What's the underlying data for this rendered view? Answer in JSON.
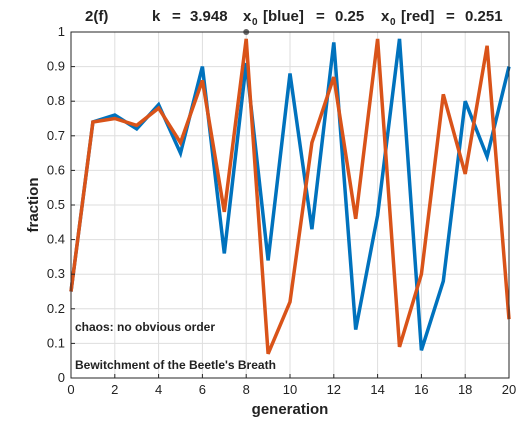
{
  "chart_data": {
    "type": "line",
    "title": {
      "panel": "2(f)",
      "k_label": "k",
      "k_value": "3.948",
      "x0_blue_label": "x",
      "x0_blue_sub": "0",
      "x0_blue_color_word": "[blue]",
      "x0_blue_value": "0.25",
      "x0_red_label": "x",
      "x0_red_sub": "0",
      "x0_red_color_word": "[red]",
      "x0_red_value": "0.251"
    },
    "xlabel": "generation",
    "ylabel": "fraction",
    "xlim": [
      0,
      20
    ],
    "ylim": [
      0,
      1
    ],
    "xticks": [
      "0",
      "2",
      "4",
      "6",
      "8",
      "10",
      "12",
      "14",
      "16",
      "18",
      "20"
    ],
    "xtick_values": [
      0,
      2,
      4,
      6,
      8,
      10,
      12,
      14,
      16,
      18,
      20
    ],
    "yticks": [
      "0",
      "0.1",
      "0.2",
      "0.3",
      "0.4",
      "0.5",
      "0.6",
      "0.7",
      "0.8",
      "0.9",
      "1"
    ],
    "ytick_values": [
      0,
      0.1,
      0.2,
      0.3,
      0.4,
      0.5,
      0.6,
      0.7,
      0.8,
      0.9,
      1
    ],
    "grid": true,
    "x": [
      0,
      1,
      2,
      3,
      4,
      5,
      6,
      7,
      8,
      9,
      10,
      11,
      12,
      13,
      14,
      15,
      16,
      17,
      18,
      19,
      20
    ],
    "series": [
      {
        "color": "#0072BD",
        "values": [
          0.25,
          0.74,
          0.76,
          0.72,
          0.79,
          0.65,
          0.9,
          0.36,
          0.91,
          0.34,
          0.88,
          0.43,
          0.97,
          0.14,
          0.47,
          0.98,
          0.08,
          0.28,
          0.8,
          0.64,
          0.9
        ]
      },
      {
        "color": "#D95319",
        "values": [
          0.25,
          0.74,
          0.75,
          0.73,
          0.78,
          0.68,
          0.86,
          0.48,
          0.98,
          0.07,
          0.22,
          0.68,
          0.87,
          0.46,
          0.98,
          0.09,
          0.3,
          0.82,
          0.59,
          0.96,
          0.17
        ]
      }
    ],
    "marker": {
      "x": 8,
      "y": 1.0,
      "color": "#666666"
    },
    "annotations": [
      "chaos: no obvious order",
      "Bewitchment of the Beetle's Breath"
    ]
  }
}
